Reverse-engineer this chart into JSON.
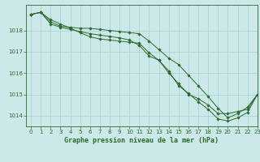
{
  "title": "Graphe pression niveau de la mer (hPa)",
  "bg_color": "#cce8e8",
  "grid_color": "#aad4d4",
  "line_color": "#2d6a2d",
  "ylim": [
    1013.5,
    1019.2
  ],
  "xlim": [
    -0.5,
    23
  ],
  "yticks": [
    1014,
    1015,
    1016,
    1017,
    1018
  ],
  "xticks": [
    0,
    1,
    2,
    3,
    4,
    5,
    6,
    7,
    8,
    9,
    10,
    11,
    12,
    13,
    14,
    15,
    16,
    17,
    18,
    19,
    20,
    21,
    22,
    23
  ],
  "lines": [
    [
      1018.75,
      1018.85,
      1018.5,
      1018.3,
      1018.1,
      1017.9,
      1017.7,
      1017.6,
      1017.55,
      1017.5,
      1017.45,
      1017.4,
      1016.95,
      1016.6,
      1016.0,
      1015.5,
      1015.0,
      1014.8,
      1014.5,
      1014.1,
      1014.1,
      1014.2,
      1014.3,
      1015.0
    ],
    [
      1018.75,
      1018.85,
      1018.4,
      1018.2,
      1018.15,
      1018.1,
      1018.1,
      1018.05,
      1018.0,
      1017.95,
      1017.9,
      1017.85,
      1017.5,
      1017.1,
      1016.7,
      1016.4,
      1015.9,
      1015.4,
      1014.9,
      1014.35,
      1013.9,
      1014.1,
      1014.4,
      1015.0
    ],
    [
      1018.75,
      1018.85,
      1018.3,
      1018.15,
      1018.05,
      1017.95,
      1017.85,
      1017.78,
      1017.72,
      1017.65,
      1017.55,
      1017.3,
      1016.8,
      1016.6,
      1016.1,
      1015.4,
      1015.05,
      1014.65,
      1014.3,
      1013.85,
      1013.75,
      1013.9,
      1014.15,
      1015.0
    ]
  ]
}
